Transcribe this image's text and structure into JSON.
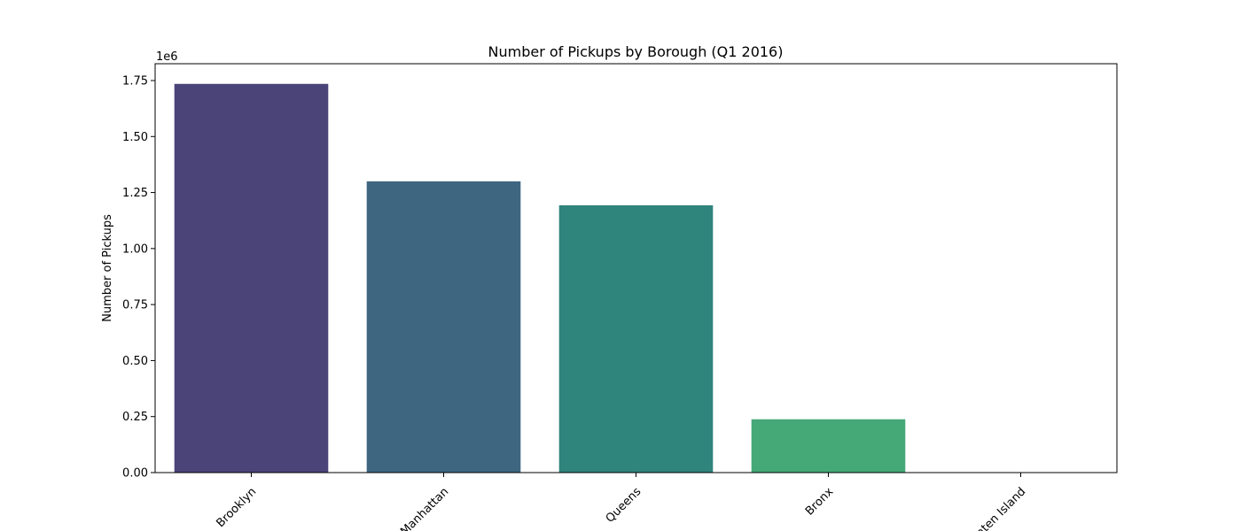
{
  "chart_data": {
    "type": "bar",
    "title": "Number of Pickups by Borough (Q1 2016)",
    "xlabel": "",
    "ylabel": "Number of Pickups",
    "y_offset_label": "1e6",
    "y_scale": 1000000,
    "categories": [
      "Brooklyn",
      "Manhattan",
      "Queens",
      "Bronx",
      "Staten Island"
    ],
    "values": [
      1735000,
      1300000,
      1193000,
      238000,
      1500
    ],
    "colors": [
      "#4a4478",
      "#3e6681",
      "#2f847c",
      "#45a877",
      "#7ad151"
    ],
    "ylim": [
      0,
      1825000
    ],
    "yticks": [
      0,
      250000,
      500000,
      750000,
      1000000,
      1250000,
      1500000,
      1750000
    ],
    "ytick_labels": [
      "0.00",
      "0.25",
      "0.50",
      "0.75",
      "1.00",
      "1.25",
      "1.50",
      "1.75"
    ],
    "grid": false,
    "legend": "none"
  }
}
